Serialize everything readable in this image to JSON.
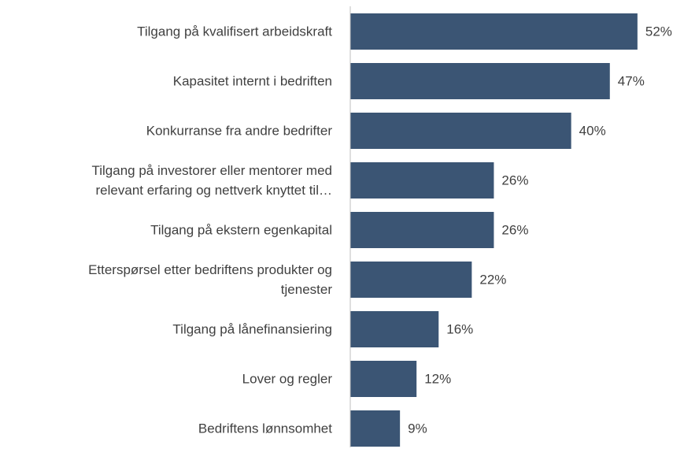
{
  "chart_data": {
    "type": "barh",
    "categories": [
      "Tilgang på kvalifisert arbeidskraft",
      "Kapasitet internt i bedriften",
      "Konkurranse fra andre bedrifter",
      "Tilgang på investorer eller mentorer med\nrelevant erfaring og nettverk knyttet til…",
      "Tilgang på ekstern egenkapital",
      "Etterspørsel etter bedriftens produkter og\ntjenester",
      "Tilgang på lånefinansiering",
      "Lover og regler",
      "Bedriftens lønnsomhet"
    ],
    "values": [
      52,
      47,
      40,
      26,
      26,
      22,
      16,
      12,
      9
    ],
    "value_labels": [
      "52%",
      "47%",
      "40%",
      "26%",
      "26%",
      "22%",
      "16%",
      "12%",
      "9%"
    ],
    "color": "#3b5574",
    "xlim": [
      0,
      60
    ]
  }
}
